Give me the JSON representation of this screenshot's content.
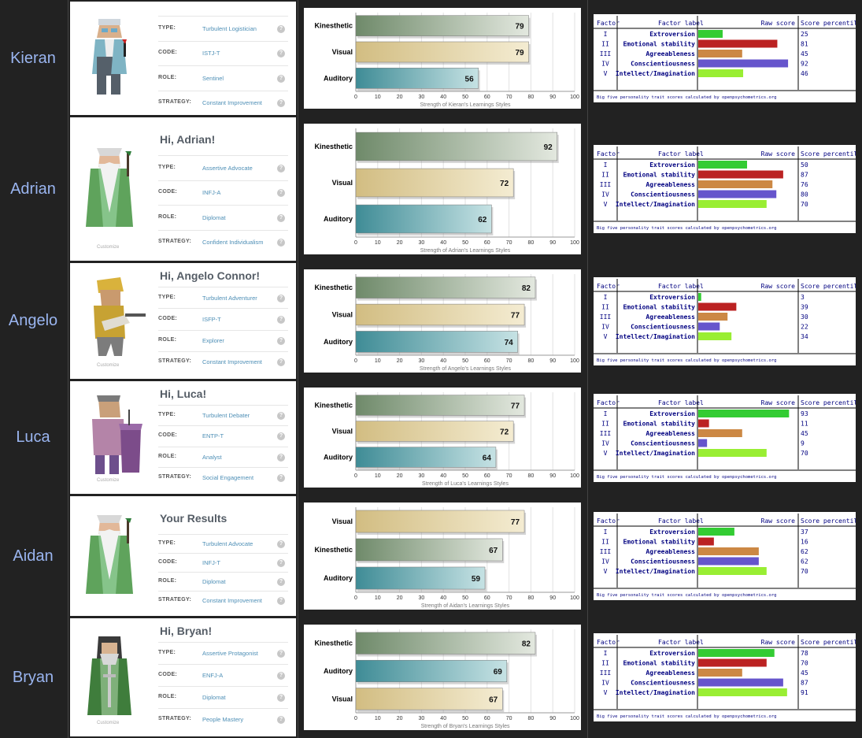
{
  "colors": {
    "page_background": "#222222",
    "name_text": "#9ab5f0",
    "kinesthetic_bar": "#7d9578",
    "visual_bar": "#d8c48d",
    "auditory_bar": "#4e9aa2",
    "extroversion": "#33cc33",
    "emotional_stability": "#bb2222",
    "agreeableness": "#cc8844",
    "conscientiousness": "#6655cc",
    "intellect": "#99ee33",
    "big5_text": "#000080",
    "profile_value_text": "#4e8fb6"
  },
  "profile_row_labels": [
    "TYPE:",
    "CODE:",
    "ROLE:",
    "STRATEGY:"
  ],
  "customize_label": "Customize",
  "help_glyph": "?",
  "big5_headers": {
    "factor": "Factor",
    "factor_label": "Factor label",
    "raw_score": "Raw score",
    "score_percentile": "Score percentile"
  },
  "big5_factors": [
    {
      "numeral": "I",
      "label": "Extroversion",
      "color_key": "extroversion"
    },
    {
      "numeral": "II",
      "label": "Emotional stability",
      "color_key": "emotional_stability"
    },
    {
      "numeral": "III",
      "label": "Agreeableness",
      "color_key": "agreeableness"
    },
    {
      "numeral": "IV",
      "label": "Conscientiousness",
      "color_key": "conscientiousness"
    },
    {
      "numeral": "V",
      "label": "Intellect/Imagination",
      "color_key": "intellect"
    }
  ],
  "big5_footer": "Big five personality trait scores calculated by openpsychometrics.org",
  "avatar_icons": [
    "scientist-avatar-icon",
    "wizard-avatar-icon",
    "guitarist-avatar-icon",
    "speaker-avatar-icon",
    "wizard-avatar-icon",
    "knight-avatar-icon"
  ],
  "people": [
    {
      "name": "Kieran",
      "greeting": "",
      "show_customize": false,
      "profile": {
        "type": "Turbulent Logistician",
        "code": "ISTJ-T",
        "role": "Sentinel",
        "strategy": "Constant Improvement"
      },
      "percentiles": [
        25,
        81,
        45,
        92,
        46
      ]
    },
    {
      "name": "Adrian",
      "greeting": "Hi, Adrian!",
      "show_customize": true,
      "profile": {
        "type": "Assertive Advocate",
        "code": "INFJ-A",
        "role": "Diplomat",
        "strategy": "Confident Individualism"
      },
      "percentiles": [
        50,
        87,
        76,
        80,
        70
      ]
    },
    {
      "name": "Angelo",
      "greeting": "Hi, Angelo Connor!",
      "show_customize": true,
      "profile": {
        "type": "Turbulent Adventurer",
        "code": "ISFP-T",
        "role": "Explorer",
        "strategy": "Constant Improvement"
      },
      "percentiles": [
        3,
        39,
        30,
        22,
        34
      ]
    },
    {
      "name": "Luca",
      "greeting": "Hi, Luca!",
      "show_customize": true,
      "profile": {
        "type": "Turbulent Debater",
        "code": "ENTP-T",
        "role": "Analyst",
        "strategy": "Social Engagement"
      },
      "percentiles": [
        93,
        11,
        45,
        9,
        70
      ]
    },
    {
      "name": "Aidan",
      "greeting": "Your Results",
      "show_customize": false,
      "profile": {
        "type": "Turbulent Advocate",
        "code": "INFJ-T",
        "role": "Diplomat",
        "strategy": "Constant Improvement"
      },
      "percentiles": [
        37,
        16,
        62,
        62,
        70
      ]
    },
    {
      "name": "Bryan",
      "greeting": "Hi, Bryan!",
      "show_customize": true,
      "profile": {
        "type": "Assertive Protagonist",
        "code": "ENFJ-A",
        "role": "Diplomat",
        "strategy": "People Mastery"
      },
      "percentiles": [
        78,
        70,
        45,
        87,
        91
      ]
    }
  ],
  "chart_data": [
    {
      "type": "bar",
      "orientation": "horizontal",
      "categories": [
        "Kinesthetic",
        "Visual",
        "Auditory"
      ],
      "values": [
        79,
        79,
        56
      ],
      "xlim": [
        0,
        100
      ],
      "xticks": [
        0,
        10,
        20,
        30,
        40,
        50,
        60,
        70,
        80,
        90,
        100
      ],
      "xlabel": "Strength of Kieran's Learnings Styles",
      "grid": true
    },
    {
      "type": "bar",
      "orientation": "horizontal",
      "categories": [
        "Kinesthetic",
        "Visual",
        "Auditory"
      ],
      "values": [
        92,
        72,
        62
      ],
      "xlim": [
        0,
        100
      ],
      "xticks": [
        0,
        10,
        20,
        30,
        40,
        50,
        60,
        70,
        80,
        90,
        100
      ],
      "xlabel": "Strength of Adrian's Learnings Styles",
      "grid": true
    },
    {
      "type": "bar",
      "orientation": "horizontal",
      "categories": [
        "Kinesthetic",
        "Visual",
        "Auditory"
      ],
      "values": [
        82,
        77,
        74
      ],
      "xlim": [
        0,
        100
      ],
      "xticks": [
        0,
        10,
        20,
        30,
        40,
        50,
        60,
        70,
        80,
        90,
        100
      ],
      "xlabel": "Strength of Angelo's Learnings Styles",
      "grid": true
    },
    {
      "type": "bar",
      "orientation": "horizontal",
      "categories": [
        "Kinesthetic",
        "Visual",
        "Auditory"
      ],
      "values": [
        77,
        72,
        64
      ],
      "xlim": [
        0,
        100
      ],
      "xticks": [
        0,
        10,
        20,
        30,
        40,
        50,
        60,
        70,
        80,
        90,
        100
      ],
      "xlabel": "Strength of Luca's Learnings Styles",
      "grid": true
    },
    {
      "type": "bar",
      "orientation": "horizontal",
      "categories": [
        "Visual",
        "Kinesthetic",
        "Auditory"
      ],
      "values": [
        77,
        67,
        59
      ],
      "xlim": [
        0,
        100
      ],
      "xticks": [
        0,
        10,
        20,
        30,
        40,
        50,
        60,
        70,
        80,
        90,
        100
      ],
      "xlabel": "Strength of Aidan's Learnings Styles",
      "grid": true
    },
    {
      "type": "bar",
      "orientation": "horizontal",
      "categories": [
        "Kinesthetic",
        "Auditory",
        "Visual"
      ],
      "values": [
        82,
        69,
        67
      ],
      "xlim": [
        0,
        100
      ],
      "xticks": [
        0,
        10,
        20,
        30,
        40,
        50,
        60,
        70,
        80,
        90,
        100
      ],
      "xlabel": "Strength of Bryan's Learnings Styles",
      "grid": true
    }
  ]
}
